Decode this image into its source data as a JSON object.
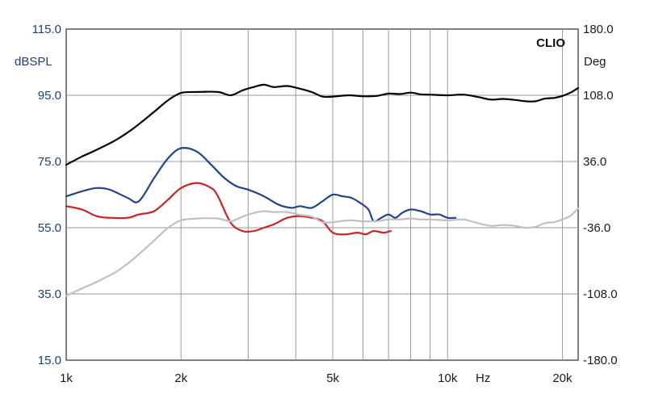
{
  "chart_data": {
    "type": "line",
    "brand": "CLIO",
    "x_unit": "Hz",
    "xscale": "log",
    "xlim": [
      1000,
      22000
    ],
    "x_ticks": [
      {
        "value": 1000,
        "label": "1k"
      },
      {
        "value": 2000,
        "label": "2k"
      },
      {
        "value": 5000,
        "label": "5k"
      },
      {
        "value": 10000,
        "label": "10k"
      },
      {
        "value": 20000,
        "label": "20k"
      }
    ],
    "left_axis": {
      "label": "dBSPL",
      "ylim": [
        15,
        115
      ],
      "ticks": [
        "15.0",
        "35.0",
        "55.0",
        "75.0",
        "95.0",
        "115.0"
      ]
    },
    "right_axis": {
      "label": "Deg",
      "ylim": [
        -180,
        180
      ],
      "ticks": [
        "-180.0",
        "-108.0",
        "-36.0",
        "36.0",
        "108.0",
        "180.0"
      ]
    },
    "grid": true,
    "series": [
      {
        "color": "#000000",
        "x": [
          1000,
          1100,
          1200,
          1350,
          1500,
          1700,
          1850,
          2000,
          2200,
          2500,
          2700,
          2900,
          3100,
          3300,
          3500,
          3800,
          4100,
          4400,
          4700,
          5000,
          5500,
          6000,
          6500,
          7000,
          7500,
          8000,
          8500,
          9000,
          10000,
          11000,
          12000,
          13000,
          14000,
          15000,
          16000,
          17000,
          18000,
          19000,
          20000,
          21000,
          22000
        ],
        "y": [
          74,
          76.5,
          78.5,
          81.5,
          85,
          90,
          93.5,
          95.7,
          96,
          96,
          95,
          96.5,
          97.5,
          98.2,
          97.5,
          97.8,
          97,
          96,
          94.6,
          94.6,
          95,
          94.7,
          94.8,
          95.5,
          95.4,
          95.8,
          95.3,
          95.2,
          95,
          95.2,
          94.5,
          93.7,
          93.9,
          93.6,
          93.2,
          93.2,
          94,
          94.2,
          94.8,
          95.8,
          97.2
        ]
      },
      {
        "color": "#22448c",
        "x": [
          1000,
          1100,
          1200,
          1300,
          1450,
          1550,
          1700,
          1850,
          2000,
          2200,
          2400,
          2600,
          2800,
          3000,
          3300,
          3600,
          3900,
          4100,
          4400,
          4700,
          5000,
          5300,
          5600,
          5900,
          6200,
          6400,
          6700,
          7000,
          7300,
          7600,
          8000,
          8500,
          9000,
          9500,
          10000,
          10500
        ],
        "y": [
          64.5,
          66,
          67,
          66.5,
          64,
          63,
          70,
          76,
          79,
          78,
          74,
          70,
          67.5,
          66.5,
          64.5,
          62,
          61,
          61.5,
          61,
          63,
          65,
          64.5,
          64,
          62.5,
          60.5,
          57,
          58,
          59,
          58,
          59.5,
          60.5,
          60,
          59,
          59,
          58,
          58
        ]
      },
      {
        "color": "#cc2222",
        "x": [
          1000,
          1100,
          1200,
          1300,
          1450,
          1550,
          1700,
          1850,
          2000,
          2200,
          2400,
          2500,
          2700,
          2900,
          3100,
          3300,
          3500,
          3800,
          4100,
          4400,
          4700,
          5000,
          5400,
          5800,
          6100,
          6400,
          6800,
          7100
        ],
        "y": [
          61.5,
          60.5,
          58.5,
          58,
          58,
          59,
          60,
          63.5,
          67,
          68.5,
          67,
          64.5,
          56.5,
          54,
          54,
          55,
          56,
          58,
          58.5,
          58,
          57,
          53.5,
          53,
          53.5,
          53,
          54,
          53.5,
          54
        ]
      },
      {
        "color": "#c0c0c0",
        "x": [
          1000,
          1100,
          1200,
          1350,
          1500,
          1700,
          1850,
          2000,
          2200,
          2500,
          2700,
          2900,
          3100,
          3300,
          3500,
          3800,
          4100,
          4400,
          4700,
          5000,
          5500,
          6000,
          6500,
          7000,
          7500,
          8000,
          8500,
          9000,
          10000,
          11000,
          12000,
          13000,
          14000,
          15000,
          16000,
          17000,
          18000,
          19000,
          20000,
          21000,
          22000
        ],
        "y": [
          -110,
          -102,
          -95,
          -84,
          -70,
          -50,
          -36,
          -28,
          -26,
          -26,
          -29,
          -24,
          -20,
          -18,
          -19,
          -19,
          -22,
          -24,
          -30,
          -30,
          -28,
          -29,
          -29,
          -27,
          -27,
          -26,
          -27,
          -27,
          -28,
          -27,
          -31,
          -34,
          -33,
          -34,
          -36,
          -35,
          -31,
          -30,
          -27,
          -23,
          -15
        ]
      }
    ]
  }
}
